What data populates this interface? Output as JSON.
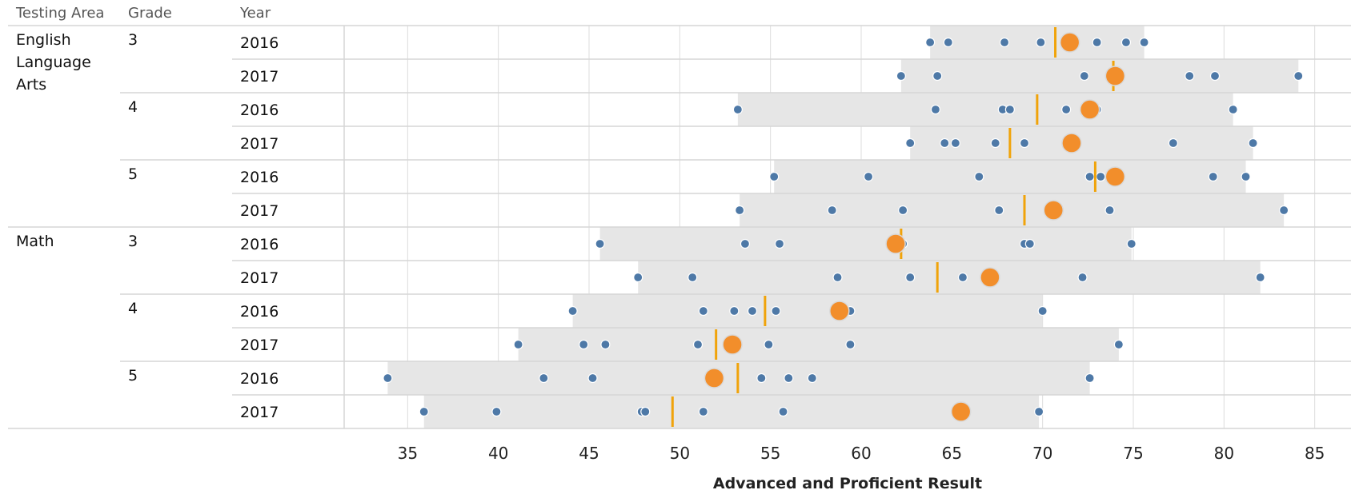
{
  "headers": {
    "area": "Testing Area",
    "grade": "Grade",
    "year": "Year"
  },
  "colors": {
    "band": "#e6e6e6",
    "dot": "#4e79a7",
    "highlight": "#f28e2b",
    "median": "#f0a30a",
    "grid": "#dcdcdc"
  },
  "chart_data": {
    "type": "scatter",
    "xlabel": "Advanced and Proficient Result",
    "xlim": [
      31.5,
      87
    ],
    "xticks": [
      35,
      40,
      45,
      50,
      55,
      60,
      65,
      70,
      75,
      80,
      85
    ],
    "rows": [
      {
        "area": "English Language Arts",
        "grade": "3",
        "year": "2016",
        "min": 63.8,
        "max": 75.6,
        "median": 70.7,
        "highlight": 71.5,
        "points": [
          63.8,
          64.8,
          67.9,
          69.9,
          71.5,
          73.0,
          74.6,
          75.6
        ]
      },
      {
        "area": "English Language Arts",
        "grade": "3",
        "year": "2017",
        "min": 62.2,
        "max": 84.1,
        "median": 73.9,
        "highlight": 74.0,
        "points": [
          62.2,
          64.2,
          72.3,
          74.0,
          78.1,
          79.5,
          84.1
        ]
      },
      {
        "area": "English Language Arts",
        "grade": "4",
        "year": "2016",
        "min": 53.2,
        "max": 80.5,
        "median": 69.7,
        "highlight": 72.6,
        "points": [
          53.2,
          64.1,
          67.8,
          68.2,
          71.3,
          72.6,
          73.0,
          80.5
        ]
      },
      {
        "area": "English Language Arts",
        "grade": "4",
        "year": "2017",
        "min": 62.7,
        "max": 81.6,
        "median": 68.2,
        "highlight": 71.6,
        "points": [
          62.7,
          64.6,
          65.2,
          67.4,
          69.0,
          71.6,
          77.2,
          81.6
        ]
      },
      {
        "area": "English Language Arts",
        "grade": "5",
        "year": "2016",
        "min": 55.2,
        "max": 81.2,
        "median": 72.9,
        "highlight": 74.0,
        "points": [
          55.2,
          60.4,
          66.5,
          72.6,
          73.2,
          74.0,
          79.4,
          81.2
        ]
      },
      {
        "area": "English Language Arts",
        "grade": "5",
        "year": "2017",
        "min": 53.3,
        "max": 83.3,
        "median": 69.0,
        "highlight": 70.6,
        "points": [
          53.3,
          58.4,
          62.3,
          67.6,
          70.3,
          70.6,
          73.7,
          83.3
        ]
      },
      {
        "area": "Math",
        "grade": "3",
        "year": "2016",
        "min": 45.6,
        "max": 74.9,
        "median": 62.2,
        "highlight": 61.9,
        "points": [
          45.6,
          53.6,
          55.5,
          61.9,
          62.3,
          69.0,
          69.3,
          74.9
        ]
      },
      {
        "area": "Math",
        "grade": "3",
        "year": "2017",
        "min": 47.7,
        "max": 82.0,
        "median": 64.2,
        "highlight": 67.1,
        "points": [
          47.7,
          50.7,
          58.7,
          62.7,
          65.6,
          67.1,
          72.2,
          82.0
        ]
      },
      {
        "area": "Math",
        "grade": "4",
        "year": "2016",
        "min": 44.1,
        "max": 70.0,
        "median": 54.7,
        "highlight": 58.8,
        "points": [
          44.1,
          51.3,
          53.0,
          54.0,
          55.3,
          58.8,
          59.4,
          70.0
        ]
      },
      {
        "area": "Math",
        "grade": "4",
        "year": "2017",
        "min": 41.1,
        "max": 74.2,
        "median": 52.0,
        "highlight": 52.9,
        "points": [
          41.1,
          44.7,
          45.9,
          51.0,
          52.9,
          54.9,
          59.4,
          74.2
        ]
      },
      {
        "area": "Math",
        "grade": "5",
        "year": "2016",
        "min": 33.9,
        "max": 72.6,
        "median": 53.2,
        "highlight": 51.9,
        "points": [
          33.9,
          42.5,
          45.2,
          51.9,
          54.5,
          56.0,
          57.3,
          72.6
        ]
      },
      {
        "area": "Math",
        "grade": "5",
        "year": "2017",
        "min": 35.9,
        "max": 69.8,
        "median": 49.6,
        "highlight": 65.5,
        "points": [
          35.9,
          39.9,
          47.9,
          48.1,
          51.3,
          55.7,
          65.5,
          69.8
        ]
      }
    ],
    "areas": [
      {
        "label": "English Language Arts",
        "label_lines": [
          "English",
          "Language",
          "Arts"
        ],
        "grades": [
          "3",
          "4",
          "5"
        ]
      },
      {
        "label": "Math",
        "label_lines": [
          "Math"
        ],
        "grades": [
          "3",
          "4",
          "5"
        ]
      }
    ]
  }
}
